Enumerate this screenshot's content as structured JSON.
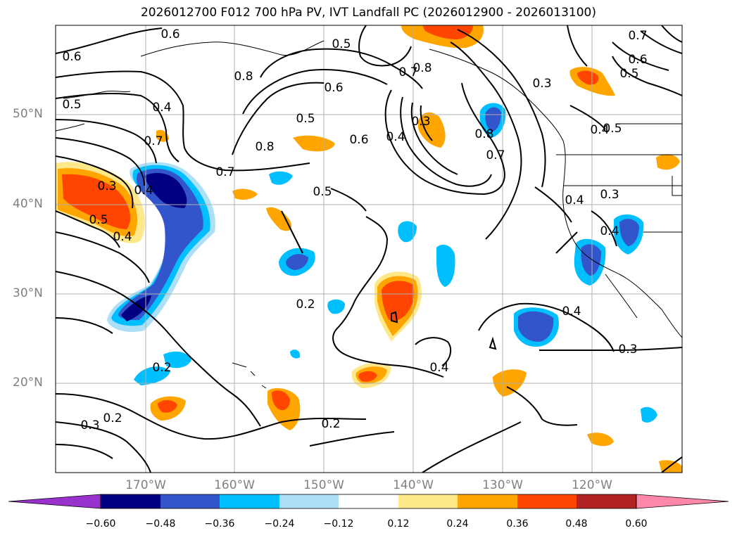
{
  "title": "2026012700 F012 700 hPa PV, IVT Landfall PC (2026012900 - 2026013100)",
  "map": {
    "lat_labels": [
      "50°N",
      "40°N",
      "30°N",
      "20°N"
    ],
    "lon_labels": [
      "170°W",
      "160°W",
      "150°W",
      "140°W",
      "130°W",
      "120°W"
    ],
    "contour_labels": [
      "0.6",
      "0.6",
      "0.5",
      "0.4",
      "0.7",
      "0.3",
      "0.4",
      "0.5",
      "0.4",
      "0.8",
      "0.5",
      "0.8",
      "0.6",
      "0.5",
      "0.6",
      "0.7",
      "0.5",
      "0.4",
      "0.3",
      "0.8",
      "0.7",
      "0.8",
      "0.7",
      "0.3",
      "0.7",
      "0.6",
      "0.5",
      "0.4",
      "0.5",
      "0.4",
      "0.3",
      "0.4",
      "0.2",
      "0.4",
      "0.4",
      "0.3",
      "0.2",
      "0.2",
      "0.3",
      "0.2"
    ]
  },
  "colorbar": {
    "ticks": [
      "−0.60",
      "−0.48",
      "−0.36",
      "−0.24",
      "−0.12",
      "0.12",
      "0.24",
      "0.36",
      "0.48",
      "0.60"
    ],
    "colors": [
      "#9932cc",
      "#000080",
      "#3355cc",
      "#00bfff",
      "#addff7",
      "#ffffff",
      "#ffe88a",
      "#ffa500",
      "#ff4500",
      "#b22222",
      "#ff88aa"
    ]
  },
  "colors": {
    "neg_strong": "#3355cc",
    "neg_med": "#00bfff",
    "neg_weak": "#addff7",
    "neg_max": "#000080",
    "pos_weak": "#ffe88a",
    "pos_med": "#ffa500",
    "pos_strong": "#ff4500",
    "grid": "#b0b0b0",
    "contour": "#000000"
  }
}
